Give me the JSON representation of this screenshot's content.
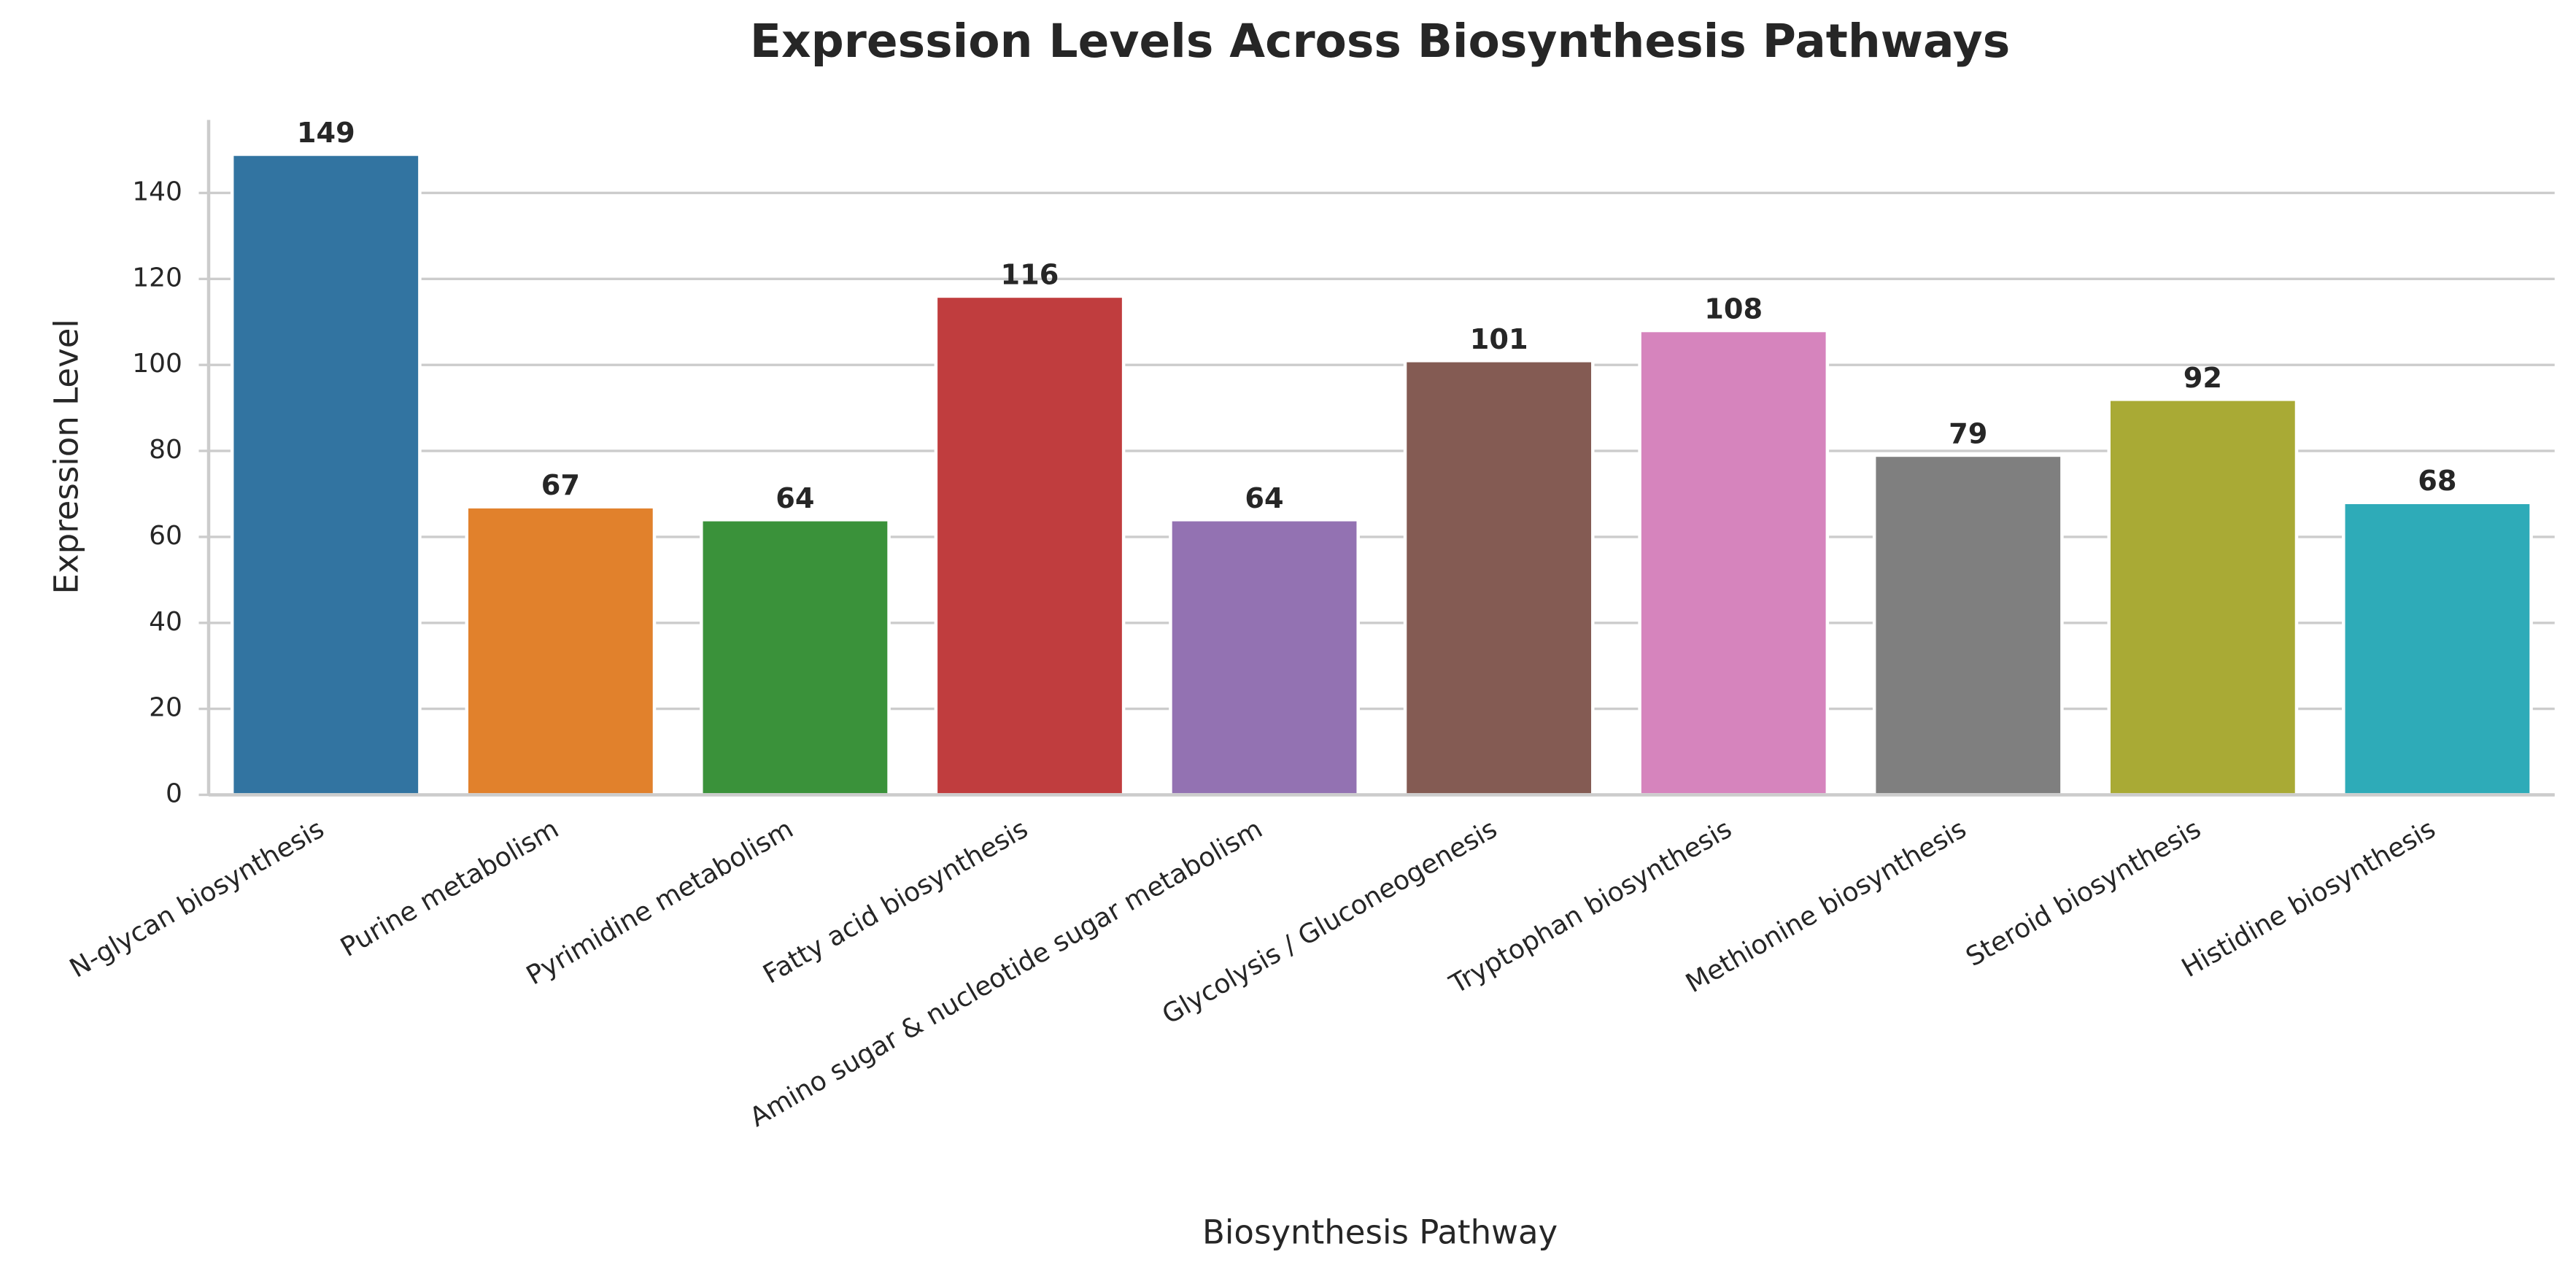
{
  "chart_data": {
    "type": "bar",
    "title": "Expression Levels Across Biosynthesis Pathways",
    "x_label": "Biosynthesis Pathway",
    "y_label": "Expression Level",
    "categories": [
      "N-glycan biosynthesis",
      "Purine metabolism",
      "Pyrimidine metabolism",
      "Fatty acid biosynthesis",
      "Amino sugar & nucleotide sugar metabolism",
      "Glycolysis / Gluconeogenesis",
      "Tryptophan biosynthesis",
      "Methionine biosynthesis",
      "Steroid biosynthesis",
      "Histidine biosynthesis"
    ],
    "values": [
      149,
      67,
      64,
      116,
      64,
      101,
      108,
      79,
      92,
      68
    ],
    "colors": [
      "#3274a1",
      "#e1812c",
      "#3a923a",
      "#c03d3e",
      "#9372b2",
      "#845b53",
      "#d684bd",
      "#7f7f7f",
      "#a9aa35",
      "#2eabb8"
    ],
    "ylim": [
      0,
      157
    ],
    "yticks": [
      0,
      20,
      40,
      60,
      80,
      100,
      120,
      140
    ],
    "grid": true
  }
}
